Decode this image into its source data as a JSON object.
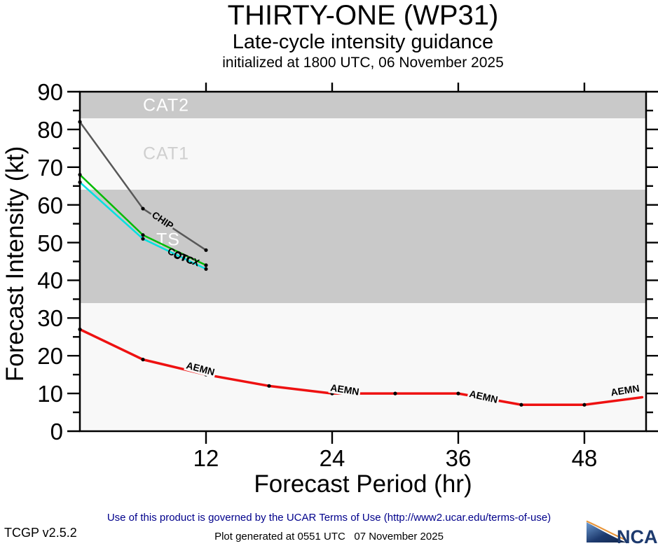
{
  "header": {
    "title": "THIRTY-ONE (WP31)",
    "subtitle": "Late-cycle intensity guidance",
    "init_line": "initialized at 1800 UTC, 06 November 2025"
  },
  "footer": {
    "terms": "Use of this product is governed by the UCAR Terms of Use (http://www2.ucar.edu/terms-of-use)",
    "version": "TCGP v2.5.2",
    "generated": "Plot generated at 0551 UTC   07 November 2025",
    "logo_text": "NCAR",
    "logo_navy": "#1d3a6e",
    "logo_orange": "#e8963c"
  },
  "chart_data": {
    "type": "line",
    "title": "THIRTY-ONE (WP31) Late-cycle intensity guidance",
    "xlabel": "Forecast Period (hr)",
    "ylabel": "Forecast Intensity (kt)",
    "xlim": [
      0,
      53.87
    ],
    "ylim": [
      0,
      90
    ],
    "x_ticks": [
      12,
      24,
      36,
      48
    ],
    "y_ticks_major": [
      0,
      10,
      20,
      30,
      40,
      50,
      60,
      70,
      80,
      90
    ],
    "y_ticks_minor": [
      5,
      15,
      25,
      35,
      45,
      55,
      65,
      75,
      85
    ],
    "grid": false,
    "plot_bg": "#f8f8f8",
    "frame_color": "#000000",
    "bands": [
      {
        "name": "CAT2",
        "from": 83,
        "to": 90,
        "color": "#c9c9c9",
        "label_color": "#ffffff",
        "label_hr": 8.2,
        "label_kt": 86.3
      },
      {
        "name": "CAT1",
        "from": 64,
        "to": 83,
        "color": "#f8f8f8",
        "label_color": "#cfcfcf",
        "label_hr": 8.2,
        "label_kt": 73.5
      },
      {
        "name": "TS",
        "from": 34,
        "to": 64,
        "color": "#c9c9c9",
        "label_color": "#ffffff",
        "label_hr": 8.4,
        "label_kt": 50.6
      }
    ],
    "series": [
      {
        "name": "CHIP",
        "color": "#585858",
        "width": 2.5,
        "dots": "all",
        "points": [
          [
            0,
            82
          ],
          [
            6,
            59
          ],
          [
            12,
            48
          ]
        ]
      },
      {
        "name": "CTCX",
        "color": "#00bb00",
        "width": 2.5,
        "dots": "all",
        "points": [
          [
            0,
            68
          ],
          [
            6,
            52
          ],
          [
            12,
            44
          ]
        ]
      },
      {
        "name": "COTC",
        "color": "#00e0e0",
        "width": 2.5,
        "dots": "all",
        "points": [
          [
            0,
            66
          ],
          [
            6,
            51
          ],
          [
            12,
            43
          ]
        ]
      },
      {
        "name": "AEMN",
        "color": "#ee1111",
        "width": 3.5,
        "dots": "skip_last",
        "points": [
          [
            0,
            27
          ],
          [
            6,
            19
          ],
          [
            12,
            15
          ],
          [
            18,
            12
          ],
          [
            24,
            10
          ],
          [
            30,
            10
          ],
          [
            36,
            10
          ],
          [
            42,
            7
          ],
          [
            48,
            7
          ],
          [
            53.5,
            9
          ]
        ]
      }
    ],
    "line_labels": [
      {
        "text": "CHIP",
        "hr": 7.9,
        "kt": 55.9,
        "rot": 34,
        "bg": "#c9c9c9"
      },
      {
        "text": "COTC",
        "hr": 9.6,
        "kt": 46.3,
        "rot": 24,
        "bg": ""
      },
      {
        "text": "CTCX",
        "hr": 10.15,
        "kt": 45.6,
        "rot": 20,
        "bg": ""
      },
      {
        "text": "AEMN",
        "hr": 11.5,
        "kt": 16.5,
        "rot": 15,
        "bg": "#f8f8f8"
      },
      {
        "text": "AEMN",
        "hr": 25.2,
        "kt": 10.9,
        "rot": 9,
        "bg": "#f8f8f8"
      },
      {
        "text": "AEMN",
        "hr": 38.4,
        "kt": 9.1,
        "rot": 13,
        "bg": "#f8f8f8"
      },
      {
        "text": "AEMN",
        "hr": 51.9,
        "kt": 10.8,
        "rot": -9,
        "bg": "#f8f8f8"
      }
    ]
  }
}
